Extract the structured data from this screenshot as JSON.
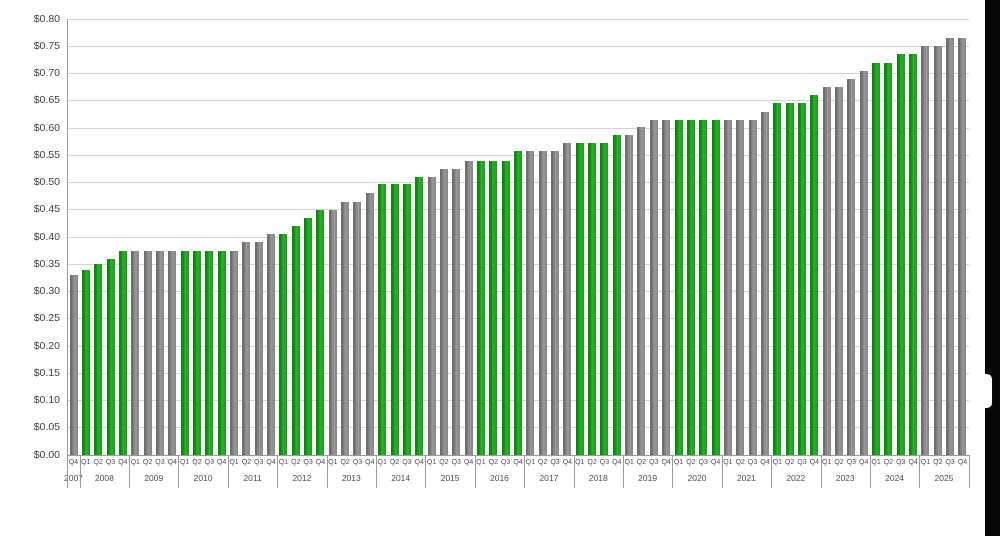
{
  "chart_data": {
    "type": "bar",
    "title": "",
    "xlabel": "",
    "ylabel": "",
    "ylim": [
      0,
      0.8
    ],
    "grid": true,
    "legend": false,
    "y_axis": {
      "min": 0,
      "max": 0.8,
      "step": 0.05,
      "tick_labels": [
        "$0.00",
        "$0.05",
        "$0.10",
        "$0.15",
        "$0.20",
        "$0.25",
        "$0.30",
        "$0.35",
        "$0.40",
        "$0.45",
        "$0.50",
        "$0.55",
        "$0.60",
        "$0.65",
        "$0.70",
        "$0.75",
        "$0.80"
      ]
    },
    "years": [
      {
        "year": "2007",
        "color": "gray",
        "quarters": [
          "Q4"
        ],
        "values": [
          0.33
        ]
      },
      {
        "year": "2008",
        "color": "green",
        "quarters": [
          "Q1",
          "Q2",
          "Q3",
          "Q4"
        ],
        "values": [
          0.34,
          0.35,
          0.36,
          0.375
        ]
      },
      {
        "year": "2009",
        "color": "gray",
        "quarters": [
          "Q1",
          "Q2",
          "Q3",
          "Q4"
        ],
        "values": [
          0.375,
          0.375,
          0.375,
          0.375
        ]
      },
      {
        "year": "2010",
        "color": "green",
        "quarters": [
          "Q1",
          "Q2",
          "Q3",
          "Q4"
        ],
        "values": [
          0.375,
          0.375,
          0.375,
          0.375
        ]
      },
      {
        "year": "2011",
        "color": "gray",
        "quarters": [
          "Q1",
          "Q2",
          "Q3",
          "Q4"
        ],
        "values": [
          0.375,
          0.39,
          0.39,
          0.405
        ]
      },
      {
        "year": "2012",
        "color": "green",
        "quarters": [
          "Q1",
          "Q2",
          "Q3",
          "Q4"
        ],
        "values": [
          0.405,
          0.42,
          0.435,
          0.45
        ]
      },
      {
        "year": "2013",
        "color": "gray",
        "quarters": [
          "Q1",
          "Q2",
          "Q3",
          "Q4"
        ],
        "values": [
          0.45,
          0.465,
          0.465,
          0.48
        ]
      },
      {
        "year": "2014",
        "color": "green",
        "quarters": [
          "Q1",
          "Q2",
          "Q3",
          "Q4"
        ],
        "values": [
          0.4975,
          0.4975,
          0.4975,
          0.51
        ]
      },
      {
        "year": "2015",
        "color": "gray",
        "quarters": [
          "Q1",
          "Q2",
          "Q3",
          "Q4"
        ],
        "values": [
          0.51,
          0.525,
          0.525,
          0.54
        ]
      },
      {
        "year": "2016",
        "color": "green",
        "quarters": [
          "Q1",
          "Q2",
          "Q3",
          "Q4"
        ],
        "values": [
          0.54,
          0.54,
          0.54,
          0.5575
        ]
      },
      {
        "year": "2017",
        "color": "gray",
        "quarters": [
          "Q1",
          "Q2",
          "Q3",
          "Q4"
        ],
        "values": [
          0.5575,
          0.5575,
          0.5575,
          0.5725
        ]
      },
      {
        "year": "2018",
        "color": "green",
        "quarters": [
          "Q1",
          "Q2",
          "Q3",
          "Q4"
        ],
        "values": [
          0.5725,
          0.5725,
          0.5725,
          0.5875
        ]
      },
      {
        "year": "2019",
        "color": "gray",
        "quarters": [
          "Q1",
          "Q2",
          "Q3",
          "Q4"
        ],
        "values": [
          0.5875,
          0.6025,
          0.615,
          0.615
        ]
      },
      {
        "year": "2020",
        "color": "green",
        "quarters": [
          "Q1",
          "Q2",
          "Q3",
          "Q4"
        ],
        "values": [
          0.615,
          0.615,
          0.615,
          0.615
        ]
      },
      {
        "year": "2021",
        "color": "gray",
        "quarters": [
          "Q1",
          "Q2",
          "Q3",
          "Q4"
        ],
        "values": [
          0.615,
          0.615,
          0.615,
          0.63
        ]
      },
      {
        "year": "2022",
        "color": "green",
        "quarters": [
          "Q1",
          "Q2",
          "Q3",
          "Q4"
        ],
        "values": [
          0.645,
          0.645,
          0.645,
          0.66
        ]
      },
      {
        "year": "2023",
        "color": "gray",
        "quarters": [
          "Q1",
          "Q2",
          "Q3",
          "Q4"
        ],
        "values": [
          0.675,
          0.675,
          0.69,
          0.705
        ]
      },
      {
        "year": "2024",
        "color": "green",
        "quarters": [
          "Q1",
          "Q2",
          "Q3",
          "Q4"
        ],
        "values": [
          0.72,
          0.72,
          0.735,
          0.735
        ]
      },
      {
        "year": "2025",
        "color": "gray",
        "quarters": [
          "Q1",
          "Q2",
          "Q3",
          "Q4"
        ],
        "values": [
          0.75,
          0.75,
          0.765,
          0.765
        ]
      }
    ],
    "colors": {
      "green_light": "#2cb12c",
      "green_mid": "#189c18",
      "green_dark": "#0d870d",
      "gray_light": "#989898",
      "gray_mid": "#868686",
      "gray_dark": "#6e6e6e",
      "gridline": "#d4d4d4",
      "axis": "#9a9a9a",
      "y_label": "#404040",
      "tick_label": "#4d4d4d"
    }
  }
}
